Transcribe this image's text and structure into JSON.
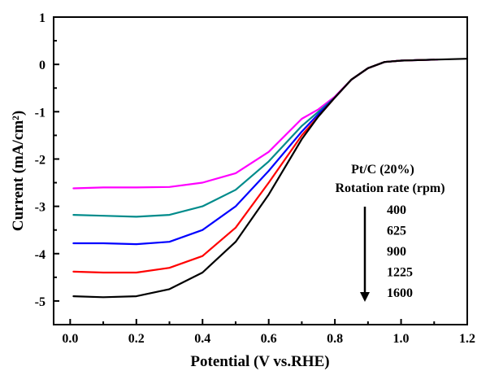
{
  "chart_data": {
    "type": "line",
    "xlabel": "Potential (V vs.RHE)",
    "ylabel": "Current (mA/cm²)",
    "xlim": [
      -0.05,
      1.2
    ],
    "ylim": [
      -5.5,
      1
    ],
    "x_ticks": [
      "0.0",
      "0.2",
      "0.4",
      "0.6",
      "0.8",
      "1.0",
      "1.2"
    ],
    "y_ticks": [
      "1",
      "0",
      "-1",
      "-2",
      "-3",
      "-4",
      "-5"
    ],
    "grid": false,
    "legend": {
      "title_line1": "Pt/C (20%)",
      "title_line2": "Rotation rate (rpm)",
      "entries": [
        "400",
        "625",
        "900",
        "1225",
        "1600"
      ],
      "arrow": "down"
    },
    "series": [
      {
        "name": "400",
        "color": "#ff00ff",
        "x": [
          0.01,
          0.1,
          0.2,
          0.3,
          0.4,
          0.5,
          0.6,
          0.7,
          0.75,
          0.8,
          0.85,
          0.9,
          0.95,
          1.0,
          1.05,
          1.11
        ],
        "y": [
          -2.62,
          -2.6,
          -2.6,
          -2.59,
          -2.5,
          -2.3,
          -1.85,
          -1.15,
          -0.95,
          -0.68,
          -0.32,
          -0.08,
          0.05,
          0.08,
          0.09,
          0.1
        ]
      },
      {
        "name": "625",
        "color": "#008b8b",
        "x": [
          0.01,
          0.1,
          0.2,
          0.3,
          0.4,
          0.5,
          0.6,
          0.7,
          0.75,
          0.8,
          0.85,
          0.9,
          0.95,
          1.0,
          1.05,
          1.1
        ],
        "y": [
          -3.18,
          -3.2,
          -3.22,
          -3.18,
          -3.0,
          -2.65,
          -2.05,
          -1.3,
          -1.0,
          -0.7,
          -0.32,
          -0.08,
          0.05,
          0.08,
          0.09,
          0.1
        ]
      },
      {
        "name": "900",
        "color": "#0000ff",
        "x": [
          0.01,
          0.1,
          0.2,
          0.3,
          0.4,
          0.5,
          0.6,
          0.7,
          0.75,
          0.8,
          0.85,
          0.9,
          0.95,
          1.0,
          1.05,
          1.1
        ],
        "y": [
          -3.78,
          -3.78,
          -3.8,
          -3.75,
          -3.5,
          -3.0,
          -2.25,
          -1.42,
          -1.05,
          -0.7,
          -0.32,
          -0.08,
          0.05,
          0.08,
          0.09,
          0.1
        ]
      },
      {
        "name": "1225",
        "color": "#ff0000",
        "x": [
          0.01,
          0.1,
          0.2,
          0.3,
          0.4,
          0.5,
          0.6,
          0.7,
          0.75,
          0.8,
          0.85,
          0.9,
          0.95,
          1.0,
          1.05,
          1.1
        ],
        "y": [
          -4.38,
          -4.4,
          -4.4,
          -4.3,
          -4.05,
          -3.45,
          -2.5,
          -1.5,
          -1.1,
          -0.7,
          -0.32,
          -0.08,
          0.05,
          0.08,
          0.09,
          0.1
        ]
      },
      {
        "name": "1600",
        "color": "#000000",
        "x": [
          0.01,
          0.1,
          0.2,
          0.3,
          0.4,
          0.5,
          0.6,
          0.7,
          0.75,
          0.8,
          0.85,
          0.9,
          0.95,
          1.0,
          1.05,
          1.1,
          1.2
        ],
        "y": [
          -4.9,
          -4.92,
          -4.9,
          -4.75,
          -4.4,
          -3.75,
          -2.75,
          -1.58,
          -1.1,
          -0.7,
          -0.32,
          -0.08,
          0.05,
          0.08,
          0.09,
          0.1,
          0.12
        ]
      }
    ]
  }
}
